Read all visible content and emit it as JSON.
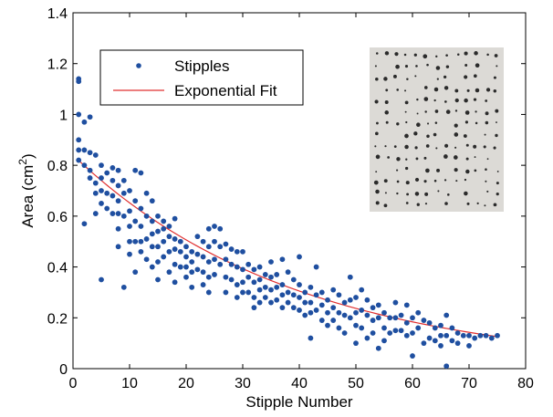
{
  "chart_data": {
    "type": "scatter",
    "title": "",
    "xlabel": "Stipple Number",
    "ylabel_main": "Area (cm",
    "ylabel_sup": "2",
    "ylabel_tail": ")",
    "xlim": [
      0,
      80
    ],
    "ylim": [
      0,
      1.4
    ],
    "x_ticks": [
      0,
      10,
      20,
      30,
      40,
      50,
      60,
      70,
      80
    ],
    "y_ticks": [
      0,
      0.2,
      0.4,
      0.6,
      0.8,
      1,
      1.2,
      1.4
    ],
    "x_tick_labels": [
      "0",
      "10",
      "20",
      "30",
      "40",
      "50",
      "60",
      "70",
      "80"
    ],
    "y_tick_labels": [
      "0",
      "0.2",
      "0.4",
      "0.6",
      "0.8",
      "1",
      "1.2",
      "1.4"
    ],
    "grid": false,
    "legend_position": "upper-left",
    "inset_image": "stipple-photo",
    "series": [
      {
        "name": "Stipples",
        "kind": "scatter",
        "color": "#1f4fa0",
        "points": [
          [
            1,
            1.14
          ],
          [
            1,
            1.13
          ],
          [
            1,
            1.0
          ],
          [
            1,
            0.9
          ],
          [
            1,
            0.86
          ],
          [
            1,
            0.82
          ],
          [
            2,
            0.97
          ],
          [
            2,
            0.86
          ],
          [
            2,
            0.8
          ],
          [
            2,
            0.57
          ],
          [
            3,
            0.99
          ],
          [
            3,
            0.85
          ],
          [
            3,
            0.78
          ],
          [
            3,
            0.75
          ],
          [
            4,
            0.84
          ],
          [
            4,
            0.73
          ],
          [
            4,
            0.69
          ],
          [
            4,
            0.61
          ],
          [
            5,
            0.8
          ],
          [
            5,
            0.75
          ],
          [
            5,
            0.7
          ],
          [
            5,
            0.65
          ],
          [
            5,
            0.35
          ],
          [
            6,
            0.77
          ],
          [
            6,
            0.69
          ],
          [
            6,
            0.63
          ],
          [
            7,
            0.79
          ],
          [
            7,
            0.74
          ],
          [
            7,
            0.68
          ],
          [
            7,
            0.61
          ],
          [
            8,
            0.78
          ],
          [
            8,
            0.72
          ],
          [
            8,
            0.66
          ],
          [
            8,
            0.61
          ],
          [
            8,
            0.55
          ],
          [
            8,
            0.48
          ],
          [
            9,
            0.74
          ],
          [
            9,
            0.69
          ],
          [
            9,
            0.6
          ],
          [
            9,
            0.32
          ],
          [
            10,
            0.7
          ],
          [
            10,
            0.62
          ],
          [
            10,
            0.56
          ],
          [
            10,
            0.5
          ],
          [
            10,
            0.45
          ],
          [
            11,
            0.78
          ],
          [
            11,
            0.66
          ],
          [
            11,
            0.58
          ],
          [
            11,
            0.5
          ],
          [
            11,
            0.38
          ],
          [
            12,
            0.77
          ],
          [
            12,
            0.63
          ],
          [
            12,
            0.56
          ],
          [
            12,
            0.5
          ],
          [
            12,
            0.46
          ],
          [
            13,
            0.69
          ],
          [
            13,
            0.6
          ],
          [
            13,
            0.51
          ],
          [
            13,
            0.43
          ],
          [
            14,
            0.66
          ],
          [
            14,
            0.58
          ],
          [
            14,
            0.53
          ],
          [
            14,
            0.48
          ],
          [
            14,
            0.4
          ],
          [
            15,
            0.6
          ],
          [
            15,
            0.54
          ],
          [
            15,
            0.48
          ],
          [
            15,
            0.42
          ],
          [
            15,
            0.35
          ],
          [
            16,
            0.58
          ],
          [
            16,
            0.55
          ],
          [
            16,
            0.5
          ],
          [
            16,
            0.44
          ],
          [
            17,
            0.56
          ],
          [
            17,
            0.52
          ],
          [
            17,
            0.46
          ],
          [
            17,
            0.38
          ],
          [
            18,
            0.59
          ],
          [
            18,
            0.51
          ],
          [
            18,
            0.47
          ],
          [
            18,
            0.41
          ],
          [
            18,
            0.34
          ],
          [
            19,
            0.5
          ],
          [
            19,
            0.46
          ],
          [
            19,
            0.4
          ],
          [
            20,
            0.48
          ],
          [
            20,
            0.44
          ],
          [
            20,
            0.4
          ],
          [
            20,
            0.36
          ],
          [
            21,
            0.46
          ],
          [
            21,
            0.42
          ],
          [
            21,
            0.38
          ],
          [
            21,
            0.32
          ],
          [
            22,
            0.52
          ],
          [
            22,
            0.45
          ],
          [
            22,
            0.39
          ],
          [
            23,
            0.5
          ],
          [
            23,
            0.44
          ],
          [
            23,
            0.38
          ],
          [
            23,
            0.33
          ],
          [
            24,
            0.55
          ],
          [
            24,
            0.48
          ],
          [
            24,
            0.42
          ],
          [
            24,
            0.36
          ],
          [
            24,
            0.3
          ],
          [
            25,
            0.56
          ],
          [
            25,
            0.5
          ],
          [
            25,
            0.43
          ],
          [
            25,
            0.37
          ],
          [
            26,
            0.55
          ],
          [
            26,
            0.48
          ],
          [
            26,
            0.41
          ],
          [
            27,
            0.49
          ],
          [
            27,
            0.43
          ],
          [
            27,
            0.36
          ],
          [
            27,
            0.3
          ],
          [
            28,
            0.47
          ],
          [
            28,
            0.41
          ],
          [
            28,
            0.35
          ],
          [
            29,
            0.46
          ],
          [
            29,
            0.4
          ],
          [
            29,
            0.33
          ],
          [
            29,
            0.28
          ],
          [
            30,
            0.46
          ],
          [
            30,
            0.39
          ],
          [
            30,
            0.34
          ],
          [
            30,
            0.3
          ],
          [
            31,
            0.41
          ],
          [
            31,
            0.36
          ],
          [
            31,
            0.3
          ],
          [
            32,
            0.39
          ],
          [
            32,
            0.34
          ],
          [
            32,
            0.28
          ],
          [
            32,
            0.24
          ],
          [
            33,
            0.4
          ],
          [
            33,
            0.35
          ],
          [
            33,
            0.31
          ],
          [
            33,
            0.26
          ],
          [
            34,
            0.37
          ],
          [
            34,
            0.32
          ],
          [
            34,
            0.28
          ],
          [
            35,
            0.42
          ],
          [
            35,
            0.36
          ],
          [
            35,
            0.31
          ],
          [
            35,
            0.26
          ],
          [
            36,
            0.37
          ],
          [
            36,
            0.32
          ],
          [
            36,
            0.27
          ],
          [
            37,
            0.43
          ],
          [
            37,
            0.33
          ],
          [
            37,
            0.29
          ],
          [
            37,
            0.24
          ],
          [
            38,
            0.38
          ],
          [
            38,
            0.3
          ],
          [
            38,
            0.26
          ],
          [
            39,
            0.35
          ],
          [
            39,
            0.29
          ],
          [
            39,
            0.24
          ],
          [
            40,
            0.44
          ],
          [
            40,
            0.33
          ],
          [
            40,
            0.28
          ],
          [
            40,
            0.23
          ],
          [
            41,
            0.3
          ],
          [
            41,
            0.26
          ],
          [
            41,
            0.21
          ],
          [
            42,
            0.32
          ],
          [
            42,
            0.26
          ],
          [
            42,
            0.22
          ],
          [
            42,
            0.12
          ],
          [
            43,
            0.4
          ],
          [
            43,
            0.29
          ],
          [
            43,
            0.23
          ],
          [
            44,
            0.3
          ],
          [
            44,
            0.25
          ],
          [
            44,
            0.19
          ],
          [
            45,
            0.27
          ],
          [
            45,
            0.22
          ],
          [
            45,
            0.17
          ],
          [
            46,
            0.31
          ],
          [
            46,
            0.24
          ],
          [
            46,
            0.19
          ],
          [
            47,
            0.29
          ],
          [
            47,
            0.22
          ],
          [
            47,
            0.16
          ],
          [
            48,
            0.26
          ],
          [
            48,
            0.21
          ],
          [
            48,
            0.14
          ],
          [
            49,
            0.36
          ],
          [
            49,
            0.27
          ],
          [
            49,
            0.2
          ],
          [
            50,
            0.28
          ],
          [
            50,
            0.22
          ],
          [
            50,
            0.17
          ],
          [
            50,
            0.1
          ],
          [
            51,
            0.31
          ],
          [
            51,
            0.23
          ],
          [
            51,
            0.16
          ],
          [
            52,
            0.27
          ],
          [
            52,
            0.21
          ],
          [
            52,
            0.12
          ],
          [
            53,
            0.24
          ],
          [
            53,
            0.19
          ],
          [
            53,
            0.14
          ],
          [
            54,
            0.25
          ],
          [
            54,
            0.2
          ],
          [
            54,
            0.08
          ],
          [
            55,
            0.22
          ],
          [
            55,
            0.16
          ],
          [
            55,
            0.11
          ],
          [
            56,
            0.2
          ],
          [
            56,
            0.14
          ],
          [
            57,
            0.26
          ],
          [
            57,
            0.2
          ],
          [
            57,
            0.15
          ],
          [
            58,
            0.21
          ],
          [
            58,
            0.15
          ],
          [
            59,
            0.25
          ],
          [
            59,
            0.18
          ],
          [
            59,
            0.13
          ],
          [
            60,
            0.2
          ],
          [
            60,
            0.14
          ],
          [
            60,
            0.05
          ],
          [
            61,
            0.22
          ],
          [
            61,
            0.16
          ],
          [
            62,
            0.19
          ],
          [
            62,
            0.1
          ],
          [
            63,
            0.18
          ],
          [
            63,
            0.12
          ],
          [
            64,
            0.16
          ],
          [
            64,
            0.11
          ],
          [
            65,
            0.17
          ],
          [
            65,
            0.13
          ],
          [
            65,
            0.09
          ],
          [
            66,
            0.21
          ],
          [
            66,
            0.13
          ],
          [
            66,
            0.01
          ],
          [
            67,
            0.16
          ],
          [
            67,
            0.11
          ],
          [
            68,
            0.14
          ],
          [
            68,
            0.1
          ],
          [
            69,
            0.13
          ],
          [
            70,
            0.13
          ],
          [
            70,
            0.09
          ],
          [
            71,
            0.12
          ],
          [
            72,
            0.13
          ],
          [
            73,
            0.13
          ],
          [
            74,
            0.12
          ],
          [
            75,
            0.13
          ]
        ]
      },
      {
        "name": "Exponential Fit",
        "kind": "line",
        "color": "#e03030",
        "fit": {
          "a": 0.84,
          "b": 0.0253
        },
        "x_range": [
          1,
          75
        ]
      }
    ]
  }
}
